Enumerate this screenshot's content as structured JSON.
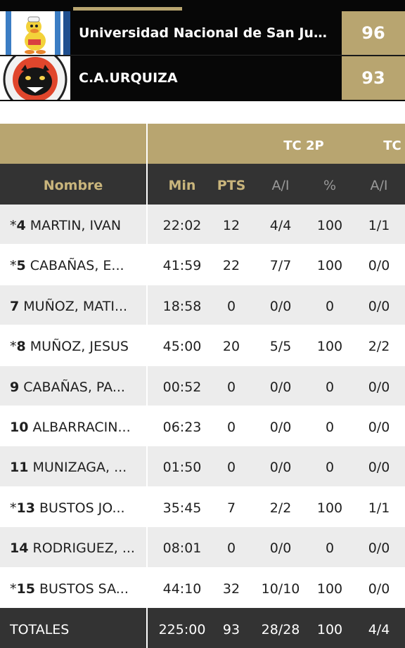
{
  "game": {
    "home": {
      "name": "Universidad Nacional de San Juan",
      "score": "96",
      "logo_icon": "duck-mascot-logo"
    },
    "away": {
      "name": "C.A.URQUIZA",
      "score": "93",
      "logo_icon": "panther-logo"
    }
  },
  "colors": {
    "gold": "#b8a570",
    "dark": "#333333",
    "header_text_gold": "#c9b57c"
  },
  "table": {
    "group_headers": [
      "TC 2P",
      "TC"
    ],
    "columns": [
      "Nombre",
      "Min",
      "PTS",
      "A/I",
      "%",
      "A/I"
    ],
    "rows": [
      {
        "star": "*",
        "number": "4",
        "name": "MARTIN, IVAN",
        "min": "22:02",
        "pts": "12",
        "tc2_ai": "4/4",
        "tc2_pct": "100",
        "tc3_ai": "1/1"
      },
      {
        "star": "*",
        "number": "5",
        "name": "CABAÑAS, E...",
        "min": "41:59",
        "pts": "22",
        "tc2_ai": "7/7",
        "tc2_pct": "100",
        "tc3_ai": "0/0"
      },
      {
        "star": "",
        "number": "7",
        "name": "MUÑOZ, MATI...",
        "min": "18:58",
        "pts": "0",
        "tc2_ai": "0/0",
        "tc2_pct": "0",
        "tc3_ai": "0/0"
      },
      {
        "star": "*",
        "number": "8",
        "name": "MUÑOZ, JESUS",
        "min": "45:00",
        "pts": "20",
        "tc2_ai": "5/5",
        "tc2_pct": "100",
        "tc3_ai": "2/2"
      },
      {
        "star": "",
        "number": "9",
        "name": "CABAÑAS, PA...",
        "min": "00:52",
        "pts": "0",
        "tc2_ai": "0/0",
        "tc2_pct": "0",
        "tc3_ai": "0/0"
      },
      {
        "star": "",
        "number": "10",
        "name": "ALBARRACIN...",
        "min": "06:23",
        "pts": "0",
        "tc2_ai": "0/0",
        "tc2_pct": "0",
        "tc3_ai": "0/0"
      },
      {
        "star": "",
        "number": "11",
        "name": "MUNIZAGA, ...",
        "min": "01:50",
        "pts": "0",
        "tc2_ai": "0/0",
        "tc2_pct": "0",
        "tc3_ai": "0/0"
      },
      {
        "star": "*",
        "number": "13",
        "name": "BUSTOS JO...",
        "min": "35:45",
        "pts": "7",
        "tc2_ai": "2/2",
        "tc2_pct": "100",
        "tc3_ai": "1/1"
      },
      {
        "star": "",
        "number": "14",
        "name": "RODRIGUEZ, ...",
        "min": "08:01",
        "pts": "0",
        "tc2_ai": "0/0",
        "tc2_pct": "0",
        "tc3_ai": "0/0"
      },
      {
        "star": "*",
        "number": "15",
        "name": "BUSTOS SA...",
        "min": "44:10",
        "pts": "32",
        "tc2_ai": "10/10",
        "tc2_pct": "100",
        "tc3_ai": "0/0"
      }
    ],
    "totals": {
      "label": "TOTALES",
      "min": "225:00",
      "pts": "93",
      "tc2_ai": "28/28",
      "tc2_pct": "100",
      "tc3_ai": "4/4"
    }
  }
}
